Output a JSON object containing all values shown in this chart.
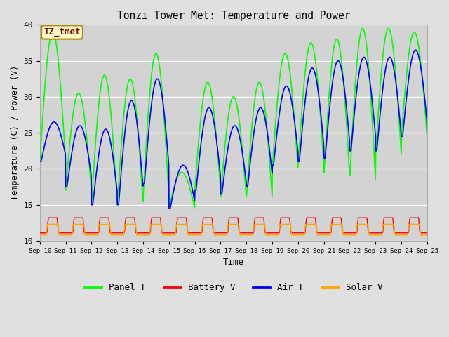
{
  "title": "Tonzi Tower Met: Temperature and Power",
  "xlabel": "Time",
  "ylabel": "Temperature (C) / Power (V)",
  "ylim": [
    10,
    40
  ],
  "yticks": [
    10,
    15,
    20,
    25,
    30,
    35,
    40
  ],
  "xtick_labels": [
    "Sep 10",
    "Sep 11",
    "Sep 12",
    "Sep 13",
    "Sep 14",
    "Sep 15",
    "Sep 16",
    "Sep 17",
    "Sep 18",
    "Sep 19",
    "Sep 20",
    "Sep 21",
    "Sep 22",
    "Sep 23",
    "Sep 24",
    "Sep 25"
  ],
  "annotation_text": "TZ_tmet",
  "annotation_color": "#8B0000",
  "annotation_bg": "#FFFFCC",
  "annotation_border": "#AA8800",
  "legend_entries": [
    "Panel T",
    "Battery V",
    "Air T",
    "Solar V"
  ],
  "legend_colors": [
    "#00FF00",
    "#FF0000",
    "#0000FF",
    "#FFA500"
  ],
  "panel_t_color": "#00FF00",
  "battery_v_color": "#FF0000",
  "air_t_color": "#0000FF",
  "solar_v_color": "#FFA500",
  "bg_color": "#E0E0E0",
  "plot_bg_color": "#D3D3D3",
  "grid_color": "#FFFFFF",
  "font_family": "monospace",
  "panel_peaks": [
    39,
    30.5,
    33,
    32.5,
    36,
    19.5,
    32,
    30,
    32,
    36,
    37.5,
    38,
    39.5,
    39.5,
    39
  ],
  "panel_mins": [
    21,
    17,
    15,
    15,
    16,
    14.5,
    17,
    16,
    16,
    20,
    20.5,
    19,
    18.5,
    22,
    24.5
  ],
  "air_peaks": [
    26.5,
    26,
    25.5,
    29.5,
    32.5,
    20.5,
    28.5,
    26,
    28.5,
    31.5,
    34,
    35,
    35.5,
    35.5,
    36.5
  ],
  "air_mins": [
    21,
    17.5,
    15,
    15,
    18,
    14.5,
    17,
    16.5,
    17.5,
    20.5,
    21,
    21.5,
    22.5,
    22.5,
    24.5
  ],
  "batt_base": 11.1,
  "batt_peak": 13.2,
  "solar_base": 10.8,
  "solar_peak": 12.3,
  "days": 15,
  "pts_per_day": 96
}
